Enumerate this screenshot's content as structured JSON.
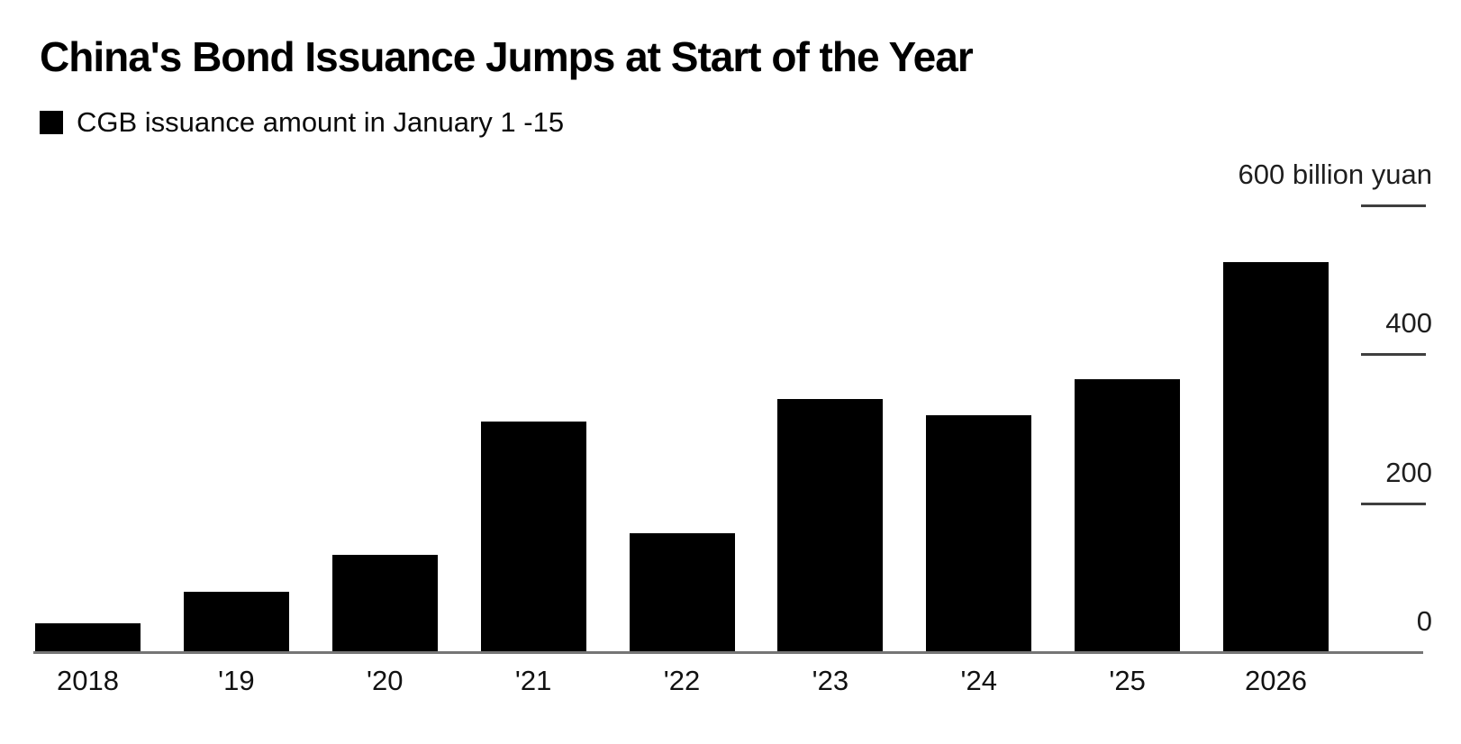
{
  "chart_data": {
    "type": "bar",
    "title": "China's Bond Issuance Jumps at Start of the Year",
    "legend": "CGB issuance amount in January 1 -15",
    "unit": "billion yuan",
    "categories": [
      "2018",
      "'19",
      "'20",
      "'21",
      "'22",
      "'23",
      "'24",
      "'25",
      "2026"
    ],
    "values": [
      37,
      80,
      129,
      308,
      158,
      339,
      317,
      365,
      523
    ],
    "ylim": [
      0,
      600
    ],
    "yticks": [
      {
        "value": 0,
        "label": "0",
        "tick_line": false
      },
      {
        "value": 200,
        "label": "200",
        "tick_line": true
      },
      {
        "value": 400,
        "label": "400",
        "tick_line": true
      },
      {
        "value": 600,
        "label": "600 billion yuan",
        "tick_line": true
      }
    ],
    "bar_color": "#000000",
    "axis_line_color": "#757575",
    "tick_line_color": "#3f3f3f",
    "text_color": "#111111",
    "grid": false,
    "legend_position": "top-left",
    "y_axis_side": "right",
    "xlabel": "",
    "ylabel": ""
  }
}
